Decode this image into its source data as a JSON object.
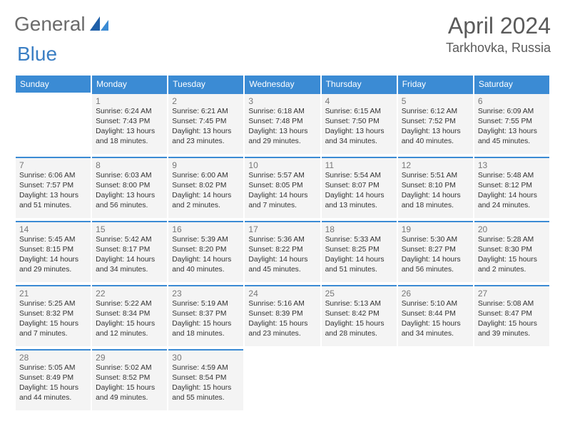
{
  "logo": {
    "text_a": "General",
    "text_b": "Blue"
  },
  "header": {
    "month_year": "April 2024",
    "location": "Tarkhovka, Russia"
  },
  "weekday_labels": [
    "Sunday",
    "Monday",
    "Tuesday",
    "Wednesday",
    "Thursday",
    "Friday",
    "Saturday"
  ],
  "calendar": {
    "header_bg": "#3b8bd4",
    "header_fg": "#ffffff",
    "cell_bg": "#f4f4f4",
    "cell_border": "#3b8bd4",
    "daynum_color": "#777777",
    "text_color": "#333333",
    "label_prefix_sunrise": "Sunrise: ",
    "label_prefix_sunset": "Sunset: ",
    "label_prefix_daylight": "Daylight: "
  },
  "weeks": [
    [
      null,
      {
        "n": "1",
        "sr": "6:24 AM",
        "ss": "7:43 PM",
        "dl": "13 hours and 18 minutes."
      },
      {
        "n": "2",
        "sr": "6:21 AM",
        "ss": "7:45 PM",
        "dl": "13 hours and 23 minutes."
      },
      {
        "n": "3",
        "sr": "6:18 AM",
        "ss": "7:48 PM",
        "dl": "13 hours and 29 minutes."
      },
      {
        "n": "4",
        "sr": "6:15 AM",
        "ss": "7:50 PM",
        "dl": "13 hours and 34 minutes."
      },
      {
        "n": "5",
        "sr": "6:12 AM",
        "ss": "7:52 PM",
        "dl": "13 hours and 40 minutes."
      },
      {
        "n": "6",
        "sr": "6:09 AM",
        "ss": "7:55 PM",
        "dl": "13 hours and 45 minutes."
      }
    ],
    [
      {
        "n": "7",
        "sr": "6:06 AM",
        "ss": "7:57 PM",
        "dl": "13 hours and 51 minutes."
      },
      {
        "n": "8",
        "sr": "6:03 AM",
        "ss": "8:00 PM",
        "dl": "13 hours and 56 minutes."
      },
      {
        "n": "9",
        "sr": "6:00 AM",
        "ss": "8:02 PM",
        "dl": "14 hours and 2 minutes."
      },
      {
        "n": "10",
        "sr": "5:57 AM",
        "ss": "8:05 PM",
        "dl": "14 hours and 7 minutes."
      },
      {
        "n": "11",
        "sr": "5:54 AM",
        "ss": "8:07 PM",
        "dl": "14 hours and 13 minutes."
      },
      {
        "n": "12",
        "sr": "5:51 AM",
        "ss": "8:10 PM",
        "dl": "14 hours and 18 minutes."
      },
      {
        "n": "13",
        "sr": "5:48 AM",
        "ss": "8:12 PM",
        "dl": "14 hours and 24 minutes."
      }
    ],
    [
      {
        "n": "14",
        "sr": "5:45 AM",
        "ss": "8:15 PM",
        "dl": "14 hours and 29 minutes."
      },
      {
        "n": "15",
        "sr": "5:42 AM",
        "ss": "8:17 PM",
        "dl": "14 hours and 34 minutes."
      },
      {
        "n": "16",
        "sr": "5:39 AM",
        "ss": "8:20 PM",
        "dl": "14 hours and 40 minutes."
      },
      {
        "n": "17",
        "sr": "5:36 AM",
        "ss": "8:22 PM",
        "dl": "14 hours and 45 minutes."
      },
      {
        "n": "18",
        "sr": "5:33 AM",
        "ss": "8:25 PM",
        "dl": "14 hours and 51 minutes."
      },
      {
        "n": "19",
        "sr": "5:30 AM",
        "ss": "8:27 PM",
        "dl": "14 hours and 56 minutes."
      },
      {
        "n": "20",
        "sr": "5:28 AM",
        "ss": "8:30 PM",
        "dl": "15 hours and 2 minutes."
      }
    ],
    [
      {
        "n": "21",
        "sr": "5:25 AM",
        "ss": "8:32 PM",
        "dl": "15 hours and 7 minutes."
      },
      {
        "n": "22",
        "sr": "5:22 AM",
        "ss": "8:34 PM",
        "dl": "15 hours and 12 minutes."
      },
      {
        "n": "23",
        "sr": "5:19 AM",
        "ss": "8:37 PM",
        "dl": "15 hours and 18 minutes."
      },
      {
        "n": "24",
        "sr": "5:16 AM",
        "ss": "8:39 PM",
        "dl": "15 hours and 23 minutes."
      },
      {
        "n": "25",
        "sr": "5:13 AM",
        "ss": "8:42 PM",
        "dl": "15 hours and 28 minutes."
      },
      {
        "n": "26",
        "sr": "5:10 AM",
        "ss": "8:44 PM",
        "dl": "15 hours and 34 minutes."
      },
      {
        "n": "27",
        "sr": "5:08 AM",
        "ss": "8:47 PM",
        "dl": "15 hours and 39 minutes."
      }
    ],
    [
      {
        "n": "28",
        "sr": "5:05 AM",
        "ss": "8:49 PM",
        "dl": "15 hours and 44 minutes."
      },
      {
        "n": "29",
        "sr": "5:02 AM",
        "ss": "8:52 PM",
        "dl": "15 hours and 49 minutes."
      },
      {
        "n": "30",
        "sr": "4:59 AM",
        "ss": "8:54 PM",
        "dl": "15 hours and 55 minutes."
      },
      null,
      null,
      null,
      null
    ]
  ]
}
